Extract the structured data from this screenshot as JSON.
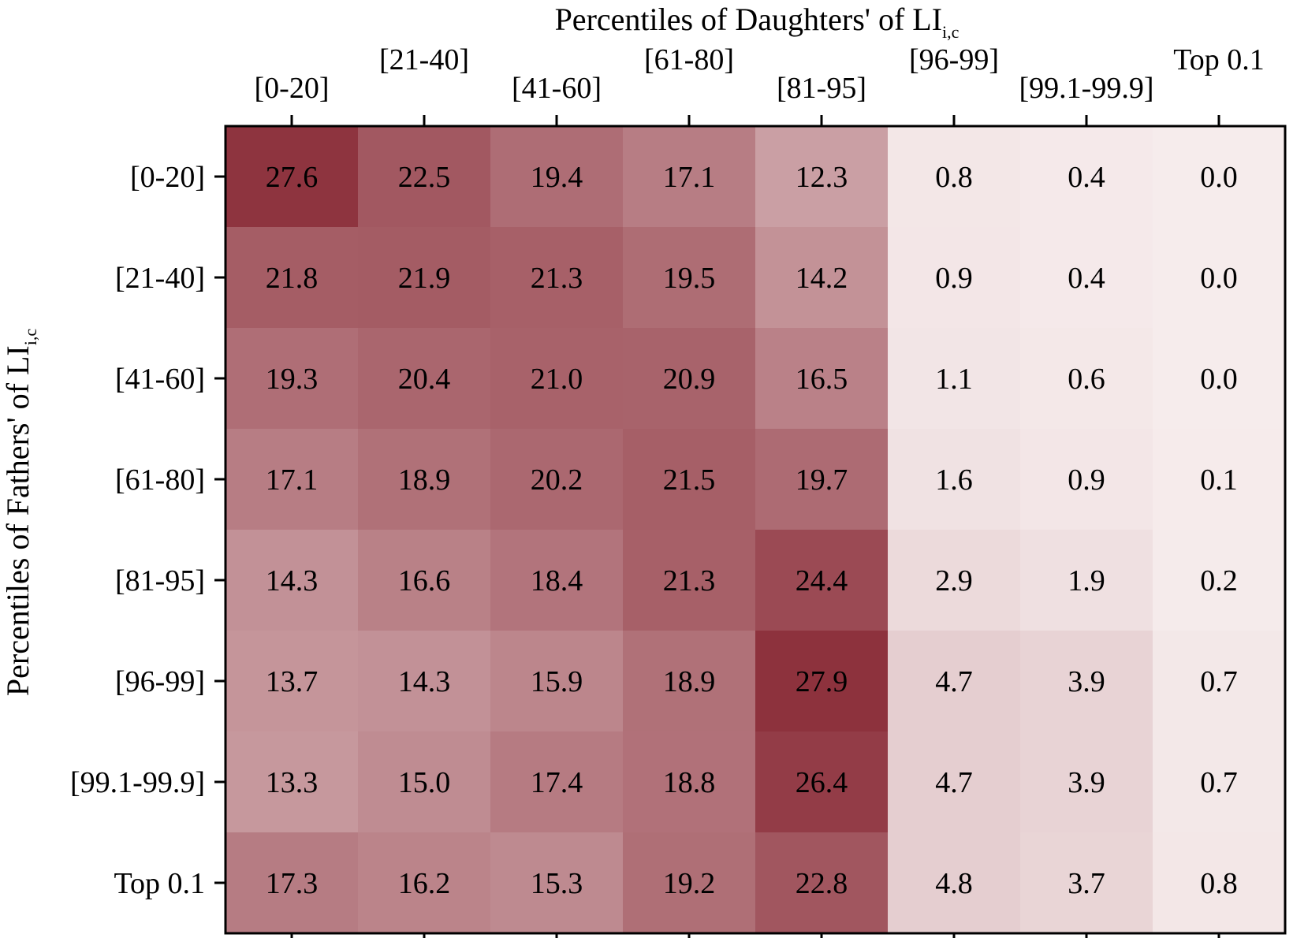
{
  "chart_data": {
    "type": "heatmap",
    "title": "",
    "xlabel": {
      "text": "Percentiles of Daughters' of LI",
      "subscript": "i,c"
    },
    "ylabel": {
      "text": "Percentiles of Fathers' of LI",
      "subscript": "i,c"
    },
    "x_categories": [
      "[0-20]",
      "[21-40]",
      "[41-60]",
      "[61-80]",
      "[81-95]",
      "[96-99]",
      "[99.1-99.9]",
      "Top 0.1"
    ],
    "y_categories": [
      "[0-20]",
      "[21-40]",
      "[41-60]",
      "[61-80]",
      "[81-95]",
      "[96-99]",
      "[99.1-99.9]",
      "Top 0.1"
    ],
    "values": [
      [
        27.6,
        22.5,
        19.4,
        17.1,
        12.3,
        0.8,
        0.4,
        0.0
      ],
      [
        21.8,
        21.9,
        21.3,
        19.5,
        14.2,
        0.9,
        0.4,
        0.0
      ],
      [
        19.3,
        20.4,
        21.0,
        20.9,
        16.5,
        1.1,
        0.6,
        0.0
      ],
      [
        17.1,
        18.9,
        20.2,
        21.5,
        19.7,
        1.6,
        0.9,
        0.1
      ],
      [
        14.3,
        16.6,
        18.4,
        21.3,
        24.4,
        2.9,
        1.9,
        0.2
      ],
      [
        13.7,
        14.3,
        15.9,
        18.9,
        27.9,
        4.7,
        3.9,
        0.7
      ],
      [
        13.3,
        15.0,
        17.4,
        18.8,
        26.4,
        4.7,
        3.9,
        0.7
      ],
      [
        17.3,
        16.2,
        15.3,
        19.2,
        22.8,
        4.8,
        3.7,
        0.8
      ]
    ],
    "colors": {
      "low": "#f6ecec",
      "mid": "#c99da2",
      "high": "#8d323d"
    },
    "x_axis_position": "top",
    "grid": false,
    "legend": "none"
  }
}
